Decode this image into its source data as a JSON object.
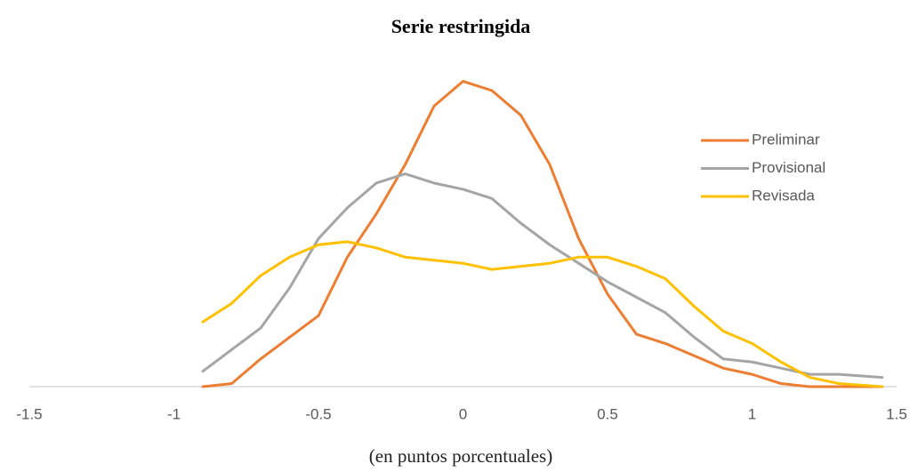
{
  "chart_data": {
    "type": "line",
    "title": "Serie restringida",
    "x_label": "(en puntos porcentuales)",
    "x": [
      -0.9,
      -0.8,
      -0.7,
      -0.6,
      -0.5,
      -0.4,
      -0.3,
      -0.2,
      -0.1,
      0,
      0.1,
      0.2,
      0.3,
      0.4,
      0.5,
      0.6,
      0.7,
      0.8,
      0.9,
      1.0,
      1.1,
      1.2,
      1.3,
      1.45
    ],
    "series": [
      {
        "name": "Preliminar",
        "color": "#ed7d31",
        "values": [
          0,
          0.01,
          0.09,
          0.16,
          0.23,
          0.42,
          0.56,
          0.72,
          0.91,
          0.99,
          0.96,
          0.88,
          0.72,
          0.48,
          0.3,
          0.17,
          0.14,
          0.1,
          0.06,
          0.04,
          0.01,
          0,
          0,
          0
        ]
      },
      {
        "name": "Provisional",
        "color": "#a5a5a5",
        "values": [
          0.05,
          0.12,
          0.19,
          0.32,
          0.48,
          0.58,
          0.66,
          0.69,
          0.66,
          0.64,
          0.61,
          0.53,
          0.46,
          0.4,
          0.34,
          0.29,
          0.24,
          0.16,
          0.09,
          0.08,
          0.06,
          0.04,
          0.04,
          0.03
        ]
      },
      {
        "name": "Revisada",
        "color": "#ffc000",
        "values": [
          0.21,
          0.27,
          0.36,
          0.42,
          0.46,
          0.47,
          0.45,
          0.42,
          0.41,
          0.4,
          0.38,
          0.39,
          0.4,
          0.42,
          0.42,
          0.39,
          0.35,
          0.26,
          0.18,
          0.14,
          0.08,
          0.03,
          0.01,
          0
        ]
      }
    ],
    "xlim": [
      -1.5,
      1.5
    ],
    "xticks": [
      -1.5,
      -1,
      -0.5,
      0,
      0.5,
      1,
      1.5
    ],
    "ylim": [
      0,
      1.0
    ],
    "legend": "upper right",
    "grid": false
  }
}
